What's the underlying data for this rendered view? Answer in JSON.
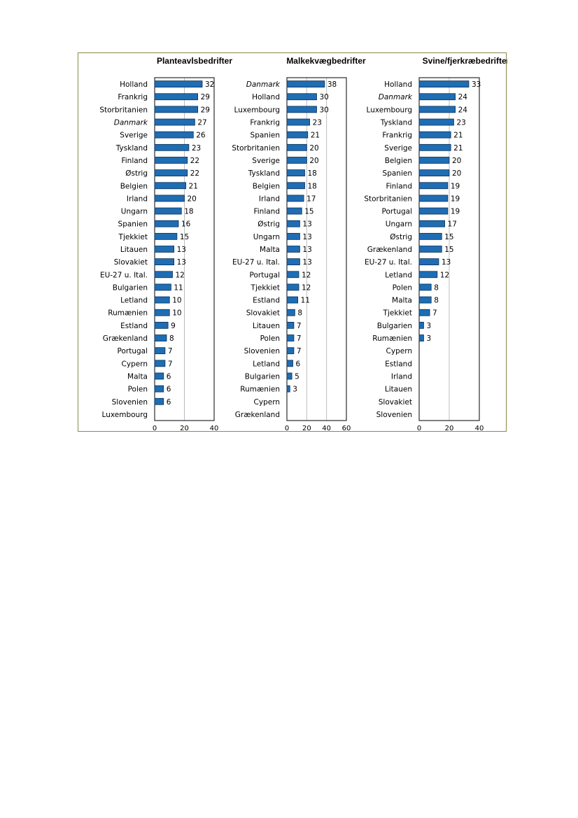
{
  "chart_data": [
    {
      "type": "bar",
      "orientation": "horizontal",
      "title": "Planteavlsbedrifter",
      "xlim": [
        0,
        40
      ],
      "xticks": [
        0,
        20,
        40
      ],
      "grid": true,
      "categories": [
        "Holland",
        "Frankrig",
        "Storbritanien",
        "Danmark",
        "Sverige",
        "Tyskland",
        "Finland",
        "Østrig",
        "Belgien",
        "Irland",
        "Ungarn",
        "Spanien",
        "Tjekkiet",
        "Litauen",
        "Slovakiet",
        "EU-27 u. Ital.",
        "Bulgarien",
        "Letland",
        "Rumænien",
        "Estland",
        "Grækenland",
        "Portugal",
        "Cypern",
        "Malta",
        "Polen",
        "Slovenien",
        "Luxembourg"
      ],
      "values": [
        32,
        29,
        29,
        27,
        26,
        23,
        22,
        22,
        21,
        20,
        18,
        16,
        15,
        13,
        13,
        12,
        11,
        10,
        10,
        9,
        8,
        7,
        7,
        6,
        6,
        6,
        null
      ],
      "value_labels": [
        "32",
        "29",
        "29",
        "27",
        "26",
        "23",
        "22",
        "22",
        "21",
        "20",
        "18",
        "16",
        "15",
        "13",
        "13",
        "12",
        "11",
        "10",
        "10",
        "9",
        "8",
        "7",
        "7",
        "6",
        "6",
        "6",
        ""
      ],
      "bar_color": "#1f6db3"
    },
    {
      "type": "bar",
      "orientation": "horizontal",
      "title": "Malkekvægbedrifter",
      "xlim": [
        0,
        60
      ],
      "xticks": [
        0,
        20,
        40,
        60
      ],
      "grid": true,
      "categories": [
        "Danmark",
        "Holland",
        "Luxembourg",
        "Frankrig",
        "Spanien",
        "Storbritanien",
        "Sverige",
        "Tyskland",
        "Belgien",
        "Irland",
        "Finland",
        "Østrig",
        "Ungarn",
        "Malta",
        "EU-27 u. Ital.",
        "Portugal",
        "Tjekkiet",
        "Estland",
        "Slovakiet",
        "Litauen",
        "Polen",
        "Slovenien",
        "Letland",
        "Bulgarien",
        "Rumænien",
        "Cypern",
        "Grækenland"
      ],
      "values": [
        38,
        30,
        30,
        23,
        21,
        20,
        20,
        18,
        18,
        17,
        15,
        13,
        13,
        13,
        13,
        12,
        12,
        11,
        8,
        7,
        7,
        7,
        6,
        5,
        3,
        null,
        null
      ],
      "value_labels": [
        "38",
        "30",
        "30",
        "23",
        "21",
        "20",
        "20",
        "18",
        "18",
        "17",
        "15",
        "13",
        "13",
        "13",
        "13",
        "12",
        "12",
        "11",
        "8",
        "7",
        "7",
        "7",
        "6",
        "5",
        "3",
        "",
        ""
      ],
      "bar_color": "#1f6db3"
    },
    {
      "type": "bar",
      "orientation": "horizontal",
      "title": "Svine/fjerkræbedrifter",
      "xlim": [
        0,
        40
      ],
      "xticks": [
        0,
        20,
        40
      ],
      "grid": true,
      "categories": [
        "Holland",
        "Danmark",
        "Luxembourg",
        "Tyskland",
        "Frankrig",
        "Sverige",
        "Belgien",
        "Spanien",
        "Finland",
        "Storbritanien",
        "Portugal",
        "Ungarn",
        "Østrig",
        "Grækenland",
        "EU-27 u. Ital.",
        "Letland",
        "Polen",
        "Malta",
        "Tjekkiet",
        "Bulgarien",
        "Rumænien",
        "Cypern",
        "Estland",
        "Irland",
        "Litauen",
        "Slovakiet",
        "Slovenien"
      ],
      "values": [
        33,
        24,
        24,
        23,
        21,
        21,
        20,
        20,
        19,
        19,
        19,
        17,
        15,
        15,
        13,
        12,
        8,
        8,
        7,
        3,
        3,
        null,
        null,
        null,
        null,
        null,
        null
      ],
      "value_labels": [
        "33",
        "24",
        "24",
        "23",
        "21",
        "21",
        "20",
        "20",
        "19",
        "19",
        "19",
        "17",
        "15",
        "15",
        "13",
        "12",
        "8",
        "8",
        "7",
        "3",
        "3",
        "",
        "",
        "",
        "",
        "",
        ""
      ],
      "bar_color": "#1f6db3"
    }
  ]
}
